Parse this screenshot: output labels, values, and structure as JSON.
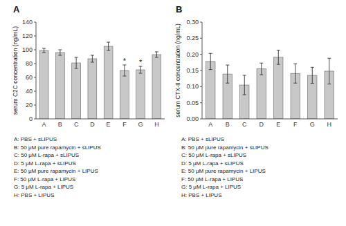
{
  "chart_data": [
    {
      "type": "bar",
      "title": "A",
      "ylabel": "serum C2C concentration (ng/mL)",
      "categories": [
        "A",
        "B",
        "C",
        "D",
        "E",
        "F",
        "G",
        "H"
      ],
      "values": [
        99,
        96,
        81,
        87,
        105,
        70,
        71,
        93
      ],
      "errors": [
        3,
        4,
        8,
        5,
        6,
        8,
        5,
        4
      ],
      "color": "#c8c8c8",
      "ylim": [
        0,
        140
      ],
      "yticks": [
        0,
        20,
        40,
        60,
        80,
        100,
        120,
        140
      ],
      "grid": false,
      "annotations": [
        {
          "text": "*",
          "x": "F"
        },
        {
          "text": "*",
          "x": "G"
        }
      ],
      "caption": [
        "A: PBS + sLIPUS",
        "B: 50 μM pure rapamycin + sLIPUS",
        "C: 50 μM L-rapa + sLIPUS",
        "D: 5 μM L-rapa + sLIPUS",
        "E: 50 μM pure rapamycin + LIPUS",
        "F: 50 μM L-rapa + LIPUS",
        "G: 5 μM L-rapa + LIPUS",
        "H: PBS + LIPUS"
      ]
    },
    {
      "type": "bar",
      "title": "B",
      "ylabel": "serum CTX-II concentration (ng/mL)",
      "categories": [
        "A",
        "B",
        "C",
        "D",
        "E",
        "F",
        "G",
        "H"
      ],
      "values": [
        0.178,
        0.139,
        0.105,
        0.155,
        0.191,
        0.141,
        0.135,
        0.148
      ],
      "errors": [
        0.025,
        0.028,
        0.03,
        0.018,
        0.022,
        0.03,
        0.025,
        0.04
      ],
      "color": "#c8c8c8",
      "ylim": [
        0,
        0.3
      ],
      "yticks": [
        {
          "value": 0,
          "label": "0.00"
        },
        0.05,
        {
          "value": 0.1,
          "label": "0.10"
        },
        0.15,
        {
          "value": 0.2,
          "label": "0.20"
        },
        0.25,
        {
          "value": 0.3,
          "label": "0.30"
        }
      ],
      "grid": false,
      "caption": [
        "A: PBS + sLIPUS",
        "B: 50 μM pure rapamycin + sLIPUS",
        "C: 50 μM L-rapa + sLIPUS",
        "D: 5 μM L-rapa + sLIPUS",
        "E: 50 μM pure rapamycin + LIPUS",
        "F: 50 μM L-rapa + LIPUS",
        "G: 5 μM L-rapa + LIPUS",
        "H: PBS + LIPUS"
      ]
    }
  ]
}
